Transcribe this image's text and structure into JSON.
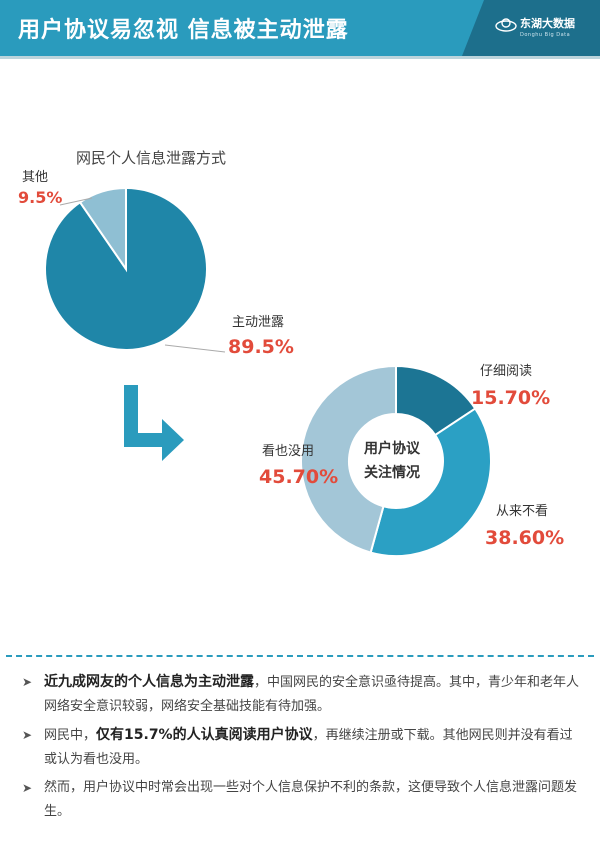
{
  "header": {
    "title": "用户协议易忽视 信息被主动泄露",
    "logo_name": "东湖大数据",
    "logo_sub": "Donghu Big Data"
  },
  "colors": {
    "header_bg": "#2a9bbd",
    "dark_teal": "#1d6f8c",
    "pie_main": "#1f86a8",
    "pie_other": "#8fbfd3",
    "accent_red": "#e24b3b"
  },
  "chart_data": [
    {
      "type": "pie",
      "title": "网民个人信息泄露方式",
      "slices": [
        {
          "label": "主动泄露",
          "value": 89.5,
          "display": "89.5%",
          "color": "#1f86a8"
        },
        {
          "label": "其他",
          "value": 9.5,
          "display": "9.5%",
          "color": "#8fbfd3"
        }
      ]
    },
    {
      "type": "pie",
      "title": "用户协议关注情况",
      "center_lines": [
        "用户协议",
        "关注情况"
      ],
      "slices": [
        {
          "label": "仔细阅读",
          "value": 15.7,
          "display": "15.70%",
          "color": "#1c7594"
        },
        {
          "label": "从来不看",
          "value": 38.6,
          "display": "38.60%",
          "color": "#2ba0c4"
        },
        {
          "label": "看也没用",
          "value": 45.7,
          "display": "45.70%",
          "color": "#a3c6d7"
        }
      ]
    }
  ],
  "bullets": [
    {
      "bold": "近九成网友的个人信息为主动泄露",
      "rest": "，中国网民的安全意识亟待提高。其中，青少年和老年人网络安全意识较弱，网络安全基础技能有待加强。"
    },
    {
      "pre": "网民中，",
      "bold": "仅有15.7%的人认真阅读用户协议",
      "rest": "，再继续注册或下载。其他网民则并没有看过或认为看也没用。"
    },
    {
      "pre": "然而，用户协议中时常会出现一些对个人信息保护不利的条款，这便导致个人信息泄露问题发生。"
    }
  ]
}
